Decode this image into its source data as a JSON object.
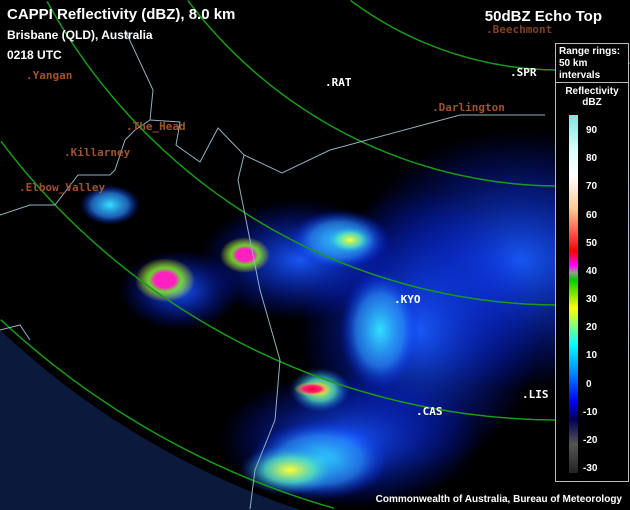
{
  "header": {
    "title": "CAPPI Reflectivity (dBZ), 8.0 km",
    "location": "Brisbane (QLD), Australia",
    "time": "0218 UTC",
    "product": "50dBZ Echo Top"
  },
  "places": [
    "Yangan",
    "The_Head",
    "Killarney",
    "Elbow_Valley",
    "Beechmont",
    "Darlington"
  ],
  "sites": [
    "RAT",
    "SPR",
    "KYO",
    "CAS",
    "LIS"
  ],
  "legend": {
    "rings_line1": "Range rings:",
    "rings_line2": "50 km",
    "rings_line3": "intervals",
    "title": "Reflectivity",
    "unit": "dBZ",
    "ticks": [
      "90",
      "80",
      "70",
      "60",
      "50",
      "40",
      "30",
      "20",
      "10",
      "0",
      "-10",
      "-20",
      "-30"
    ]
  },
  "credit": "Commonwealth of Australia, Bureau of Meteorology",
  "colors": {
    "range_ring": "#1a9a1a",
    "border": "#8fb0c0",
    "out_of_range": "#0b1a3c",
    "place_label": "#a0522d"
  }
}
